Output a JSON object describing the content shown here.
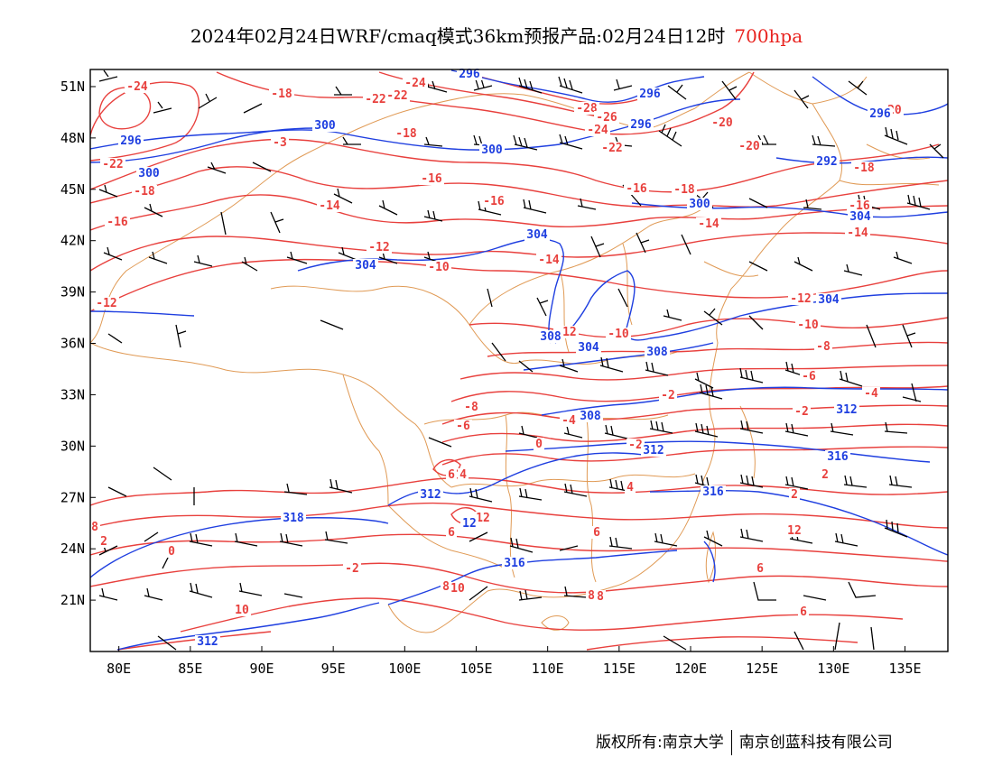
{
  "title": {
    "main": "2024年02月24日WRF/cmaq模式36km预报产品:02月24日12时",
    "level": "700hpa"
  },
  "colors": {
    "temperature": "#e8403d",
    "height": "#1f3fe0",
    "border": "#e09a55",
    "wind": "#000000",
    "level_text": "#e8231f"
  },
  "map": {
    "lon_range": [
      78,
      138
    ],
    "lat_range": [
      18,
      52
    ],
    "lon_ticks": [
      "80E",
      "85E",
      "90E",
      "95E",
      "100E",
      "105E",
      "110E",
      "115E",
      "120E",
      "125E",
      "130E",
      "135E"
    ],
    "lat_ticks": [
      "51N",
      "48N",
      "45N",
      "42N",
      "39N",
      "36N",
      "33N",
      "30N",
      "27N",
      "24N",
      "21N"
    ],
    "temperature_labels": [
      "-24",
      "-22",
      "-18",
      "-22",
      "-24",
      "-28",
      "-26",
      "-24",
      "-22",
      "-20",
      "-20",
      "-22",
      "-18",
      "-20",
      "-18",
      "-16",
      "-18",
      "-16",
      "-18",
      "-16",
      "-14",
      "-16",
      "-16",
      "-14",
      "-14",
      "-12",
      "-10",
      "-14",
      "-12",
      "-12",
      "-12",
      "-10",
      "-10",
      "-8",
      "-6",
      "-8",
      "-6",
      "-4",
      "-2",
      "-2",
      "-2",
      "-4",
      "4",
      "0",
      "4",
      "2",
      "2",
      "4",
      "2",
      "0",
      "-2",
      "6",
      "6",
      "8",
      "12",
      "8",
      "10",
      "6",
      "12",
      "6",
      "8",
      "10",
      "8",
      "6",
      "-3"
    ],
    "height_labels": [
      "296",
      "296",
      "296",
      "300",
      "300",
      "296",
      "292",
      "296",
      "300",
      "304",
      "304",
      "300",
      "304",
      "304",
      "304",
      "308",
      "308",
      "308",
      "312",
      "312",
      "312",
      "316",
      "318",
      "316",
      "316",
      "312",
      "12"
    ],
    "icons": [
      "wind-barb-icon"
    ]
  },
  "footer": {
    "copyright": "版权所有:南京大学",
    "company": "南京创蓝科技有限公司"
  }
}
